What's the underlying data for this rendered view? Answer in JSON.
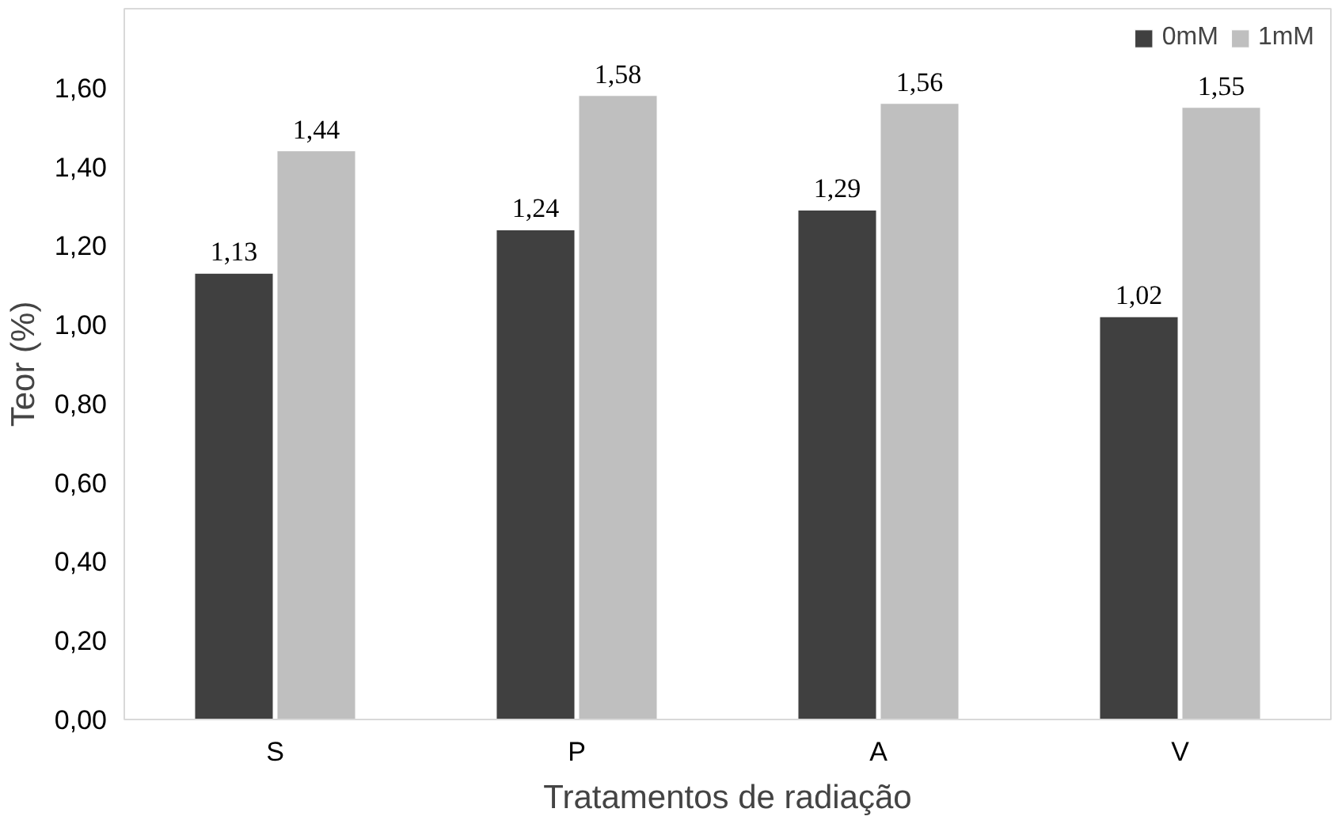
{
  "chart_data": {
    "type": "bar",
    "xlabel": "Tratamentos de radiação",
    "ylabel": "Teor (%)",
    "categories": [
      "S",
      "P",
      "A",
      "V"
    ],
    "series": [
      {
        "name": "0mM",
        "color": "#404040",
        "values": [
          1.13,
          1.24,
          1.29,
          1.02
        ],
        "value_labels": [
          "1,13",
          "1,24",
          "1,29",
          "1,02"
        ]
      },
      {
        "name": "1mM",
        "color": "#bfbfbf",
        "values": [
          1.44,
          1.58,
          1.56,
          1.55
        ],
        "value_labels": [
          "1,44",
          "1,58",
          "1,56",
          "1,55"
        ]
      }
    ],
    "ylim": [
      0,
      1.8
    ],
    "yticks": [
      {
        "value": 0,
        "label": "0,00"
      },
      {
        "value": 0.2,
        "label": "0,20"
      },
      {
        "value": 0.4,
        "label": "0,40"
      },
      {
        "value": 0.6,
        "label": "0,60"
      },
      {
        "value": 0.8,
        "label": "0,80"
      },
      {
        "value": 1.0,
        "label": "1,00"
      },
      {
        "value": 1.2,
        "label": "1,20"
      },
      {
        "value": 1.4,
        "label": "1,40"
      },
      {
        "value": 1.6,
        "label": "1,60"
      }
    ],
    "grid": false,
    "legend": "top right"
  }
}
